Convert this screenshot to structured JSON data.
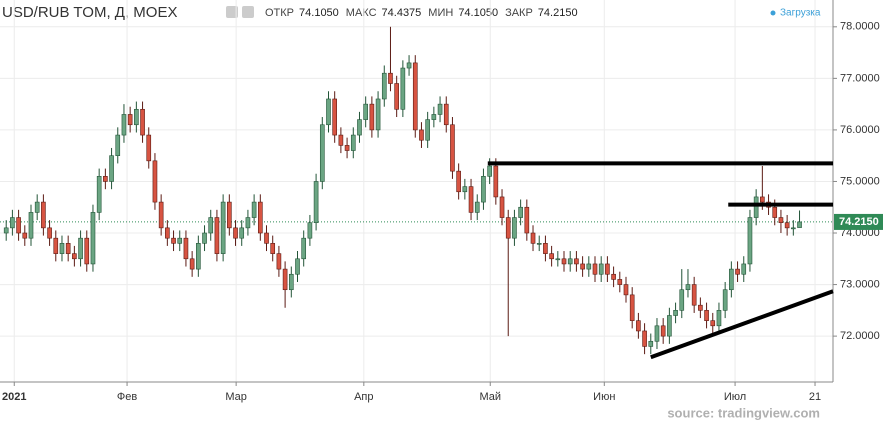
{
  "header": {
    "symbol": "USD/RUB TOM, Д, MOEX",
    "stats": [
      [
        "ОТКР",
        "74.1050"
      ],
      [
        "МАКС",
        "74.4375"
      ],
      [
        "МИН",
        "74.1050"
      ],
      [
        "ЗАКР",
        "74.2150"
      ]
    ],
    "status": "Загрузка",
    "source": "source: tradingview.com"
  },
  "chart_data": {
    "type": "candlestick",
    "up_color": "#6ba583",
    "down_color": "#d75442",
    "up_border": "#225437",
    "down_border": "#5b1a13",
    "grid": true,
    "xlim": [
      -1,
      133.4
    ],
    "xticks": [
      {
        "value": 1.3,
        "label": "2021"
      },
      {
        "value": 19.5,
        "label": "Фев"
      },
      {
        "value": 37.1,
        "label": "Мар"
      },
      {
        "value": 57.7,
        "label": "Апр"
      },
      {
        "value": 78.1,
        "label": "Май"
      },
      {
        "value": 96.5,
        "label": "Июн"
      },
      {
        "value": 117.6,
        "label": "Июл"
      },
      {
        "value": 130.5,
        "label": "21"
      }
    ],
    "ylim": [
      71.11,
      78.52
    ],
    "yticks": [
      {
        "value": 72,
        "label": "72.0000"
      },
      {
        "value": 73,
        "label": "73.0000"
      },
      {
        "value": 74,
        "label": "74.0000"
      },
      {
        "value": 75,
        "label": "75.0000"
      },
      {
        "value": 76,
        "label": "76.0000"
      },
      {
        "value": 77,
        "label": "77.0000"
      },
      {
        "value": 78,
        "label": "78.0000"
      }
    ],
    "last_price": {
      "value": 74.215,
      "label": "74.2150",
      "color": "#2f8a56"
    },
    "open": [
      74.0,
      74.1,
      74.3,
      74.0,
      73.9,
      74.4,
      74.6,
      74.1,
      73.9,
      73.6,
      73.8,
      73.6,
      73.5,
      73.9,
      73.4,
      74.4,
      75.1,
      75.0,
      75.5,
      75.9,
      76.3,
      76.1,
      76.4,
      75.9,
      75.4,
      74.6,
      74.1,
      73.9,
      73.8,
      73.9,
      73.5,
      73.3,
      73.8,
      74.0,
      74.3,
      73.6,
      74.6,
      74.1,
      73.9,
      74.1,
      74.3,
      74.6,
      74.0,
      73.8,
      73.6,
      73.3,
      72.9,
      73.2,
      73.5,
      73.9,
      74.2,
      75.0,
      76.1,
      76.6,
      75.9,
      75.7,
      75.6,
      75.9,
      76.2,
      76.5,
      76.0,
      76.6,
      77.1,
      76.9,
      76.4,
      77.2,
      77.3,
      76.0,
      75.8,
      76.2,
      76.3,
      76.5,
      76.1,
      75.2,
      74.8,
      74.9,
      74.4,
      74.6,
      75.1,
      75.3,
      74.7,
      74.3,
      73.9,
      74.3,
      74.5,
      74.0,
      73.8,
      73.8,
      73.6,
      73.5,
      73.5,
      73.4,
      73.5,
      73.4,
      73.3,
      73.4,
      73.2,
      73.4,
      73.2,
      73.1,
      73.0,
      72.8,
      72.3,
      72.1,
      71.8,
      71.9,
      72.2,
      72.0,
      72.4,
      72.5,
      72.9,
      73.0,
      72.6,
      72.5,
      72.3,
      72.2,
      72.5,
      72.9,
      73.3,
      73.2,
      73.4,
      74.3,
      74.7,
      74.6,
      74.5,
      74.3,
      74.2,
      74.1,
      74.105
    ],
    "high": [
      74.25,
      74.45,
      74.45,
      74.15,
      74.55,
      74.75,
      74.75,
      74.25,
      74.05,
      73.95,
      73.95,
      73.75,
      74.05,
      74.05,
      74.55,
      75.25,
      75.25,
      75.65,
      76.05,
      76.5,
      76.45,
      76.55,
      76.55,
      76.05,
      75.55,
      74.75,
      74.25,
      74.05,
      74.05,
      74.05,
      73.65,
      73.95,
      74.15,
      74.45,
      74.45,
      74.75,
      74.75,
      74.25,
      74.25,
      74.45,
      74.75,
      74.75,
      74.15,
      73.95,
      73.75,
      73.45,
      73.35,
      73.65,
      74.05,
      74.35,
      75.15,
      76.25,
      76.75,
      76.75,
      76.05,
      75.85,
      76.05,
      76.35,
      76.65,
      76.65,
      76.75,
      77.25,
      78.0,
      77.05,
      77.35,
      77.45,
      77.45,
      76.15,
      76.35,
      76.45,
      76.65,
      76.65,
      76.25,
      75.35,
      75.05,
      75.05,
      74.75,
      75.25,
      75.45,
      75.45,
      74.85,
      74.45,
      74.45,
      74.65,
      74.65,
      74.15,
      73.95,
      73.95,
      73.75,
      73.65,
      73.65,
      73.65,
      73.65,
      73.55,
      73.55,
      73.55,
      73.55,
      73.55,
      73.35,
      73.25,
      73.15,
      72.95,
      72.45,
      72.25,
      72.05,
      72.35,
      72.35,
      72.55,
      72.65,
      73.3,
      73.3,
      73.15,
      72.75,
      72.65,
      72.45,
      72.65,
      73.05,
      73.45,
      73.45,
      73.55,
      74.45,
      74.85,
      75.3,
      74.75,
      74.65,
      74.45,
      74.35,
      74.25,
      74.4375
    ],
    "low": [
      73.85,
      73.95,
      73.85,
      73.75,
      73.75,
      74.25,
      73.95,
      73.75,
      73.45,
      73.45,
      73.45,
      73.35,
      73.35,
      73.25,
      73.25,
      74.25,
      74.85,
      74.85,
      75.35,
      75.75,
      75.95,
      75.95,
      75.75,
      75.25,
      74.45,
      73.95,
      73.75,
      73.65,
      73.65,
      73.35,
      73.15,
      73.15,
      73.65,
      73.85,
      73.45,
      73.45,
      73.95,
      73.75,
      73.75,
      73.95,
      74.15,
      73.85,
      73.65,
      73.45,
      73.15,
      72.55,
      72.75,
      73.05,
      73.35,
      73.75,
      74.05,
      74.85,
      75.95,
      75.75,
      75.55,
      75.45,
      75.45,
      75.75,
      76.05,
      75.85,
      75.85,
      76.45,
      76.75,
      76.25,
      76.25,
      77.05,
      75.85,
      75.65,
      75.65,
      76.05,
      76.15,
      75.95,
      75.05,
      74.65,
      74.65,
      74.25,
      74.25,
      74.45,
      74.95,
      74.55,
      74.15,
      72.0,
      73.75,
      74.15,
      73.85,
      73.65,
      73.65,
      73.45,
      73.35,
      73.35,
      73.25,
      73.25,
      73.25,
      73.15,
      73.15,
      73.05,
      73.05,
      73.05,
      72.95,
      72.85,
      72.65,
      72.15,
      71.95,
      71.65,
      71.65,
      71.75,
      71.85,
      71.85,
      72.25,
      72.35,
      72.75,
      72.45,
      72.35,
      72.15,
      72.05,
      72.05,
      72.35,
      72.75,
      73.05,
      73.05,
      73.25,
      74.15,
      74.45,
      74.35,
      74.15,
      74.0,
      73.95,
      73.95,
      74.105
    ],
    "close": [
      74.1,
      74.3,
      74.0,
      73.9,
      74.4,
      74.6,
      74.1,
      73.9,
      73.6,
      73.8,
      73.6,
      73.5,
      73.9,
      73.4,
      74.4,
      75.1,
      75.0,
      75.5,
      75.9,
      76.3,
      76.1,
      76.4,
      75.9,
      75.4,
      74.6,
      74.1,
      73.9,
      73.8,
      73.9,
      73.5,
      73.3,
      73.8,
      74.0,
      74.3,
      73.6,
      74.6,
      74.1,
      73.9,
      74.1,
      74.3,
      74.6,
      74.0,
      73.8,
      73.6,
      73.3,
      72.9,
      73.2,
      73.5,
      73.9,
      74.2,
      75.0,
      76.1,
      76.6,
      75.9,
      75.7,
      75.6,
      75.9,
      76.2,
      76.5,
      76.0,
      76.6,
      77.1,
      76.9,
      76.4,
      77.2,
      77.3,
      76.0,
      75.8,
      76.2,
      76.3,
      76.5,
      76.1,
      75.2,
      74.8,
      74.9,
      74.4,
      74.6,
      75.1,
      75.3,
      74.7,
      74.3,
      73.9,
      74.3,
      74.5,
      74.0,
      73.8,
      73.8,
      73.6,
      73.5,
      73.5,
      73.4,
      73.5,
      73.4,
      73.3,
      73.4,
      73.2,
      73.4,
      73.2,
      73.1,
      73.0,
      72.8,
      72.3,
      72.1,
      71.8,
      71.9,
      72.2,
      72.0,
      72.4,
      72.5,
      72.9,
      73.0,
      72.6,
      72.5,
      72.3,
      72.2,
      72.5,
      72.9,
      73.3,
      73.2,
      73.4,
      74.3,
      74.7,
      74.6,
      74.5,
      74.3,
      74.2,
      74.1,
      74.1,
      74.215
    ],
    "drawn_lines": [
      {
        "x": [
          77.7,
          133.4
        ],
        "y": [
          75.35,
          75.35
        ],
        "color": "#000000"
      },
      {
        "x": [
          116.5,
          133.4
        ],
        "y": [
          74.55,
          74.55
        ],
        "color": "#000000"
      },
      {
        "x": [
          104,
          133.4
        ],
        "y": [
          71.59,
          72.87
        ],
        "color": "#000000"
      }
    ]
  }
}
